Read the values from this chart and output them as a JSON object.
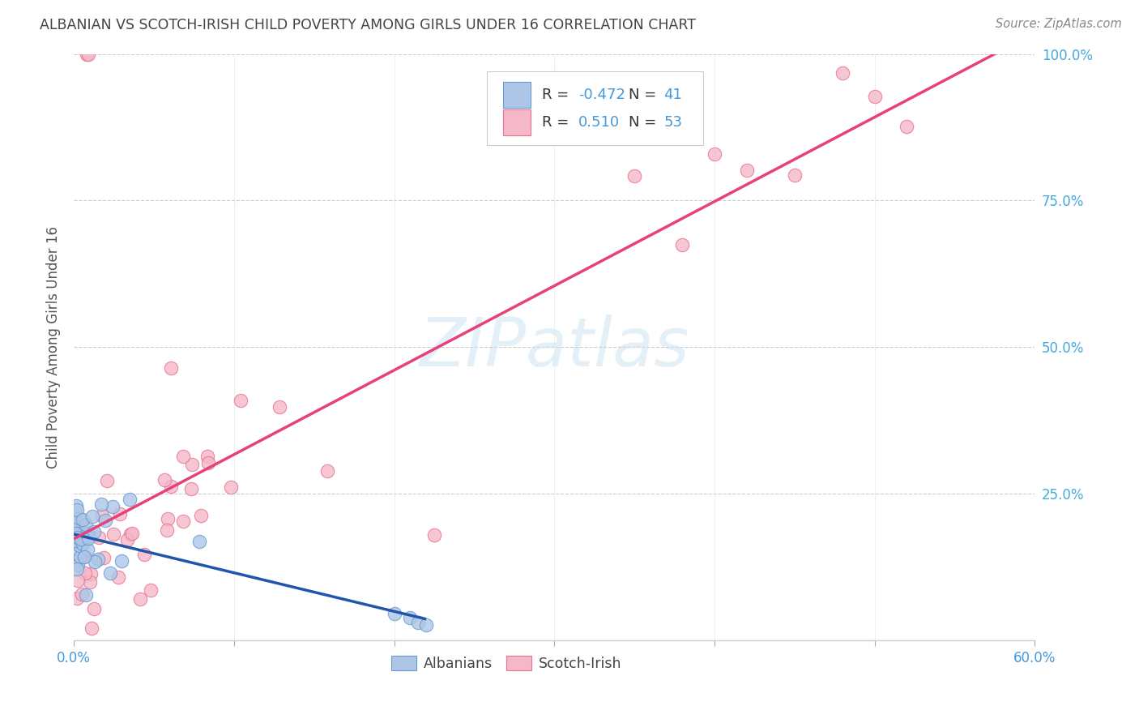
{
  "title": "ALBANIAN VS SCOTCH-IRISH CHILD POVERTY AMONG GIRLS UNDER 16 CORRELATION CHART",
  "source": "Source: ZipAtlas.com",
  "ylabel": "Child Poverty Among Girls Under 16",
  "xlim": [
    0.0,
    0.6
  ],
  "ylim": [
    0.0,
    1.0
  ],
  "albanians_R": -0.472,
  "albanians_N": 41,
  "scotch_irish_R": 0.51,
  "scotch_irish_N": 53,
  "albanians_color": "#adc6e8",
  "scotch_irish_color": "#f4b8c8",
  "albanians_edge_color": "#6699cc",
  "scotch_irish_edge_color": "#e87090",
  "albanians_line_color": "#2255aa",
  "scotch_irish_line_color": "#e8407a",
  "legend_label_albanians": "Albanians",
  "legend_label_scotch_irish": "Scotch-Irish",
  "watermark": "ZIPatlas",
  "background_color": "#ffffff",
  "grid_color": "#cccccc",
  "title_color": "#444444",
  "axis_label_color": "#555555",
  "tick_color": "#4499dd",
  "right_tick_color": "#44aadd"
}
